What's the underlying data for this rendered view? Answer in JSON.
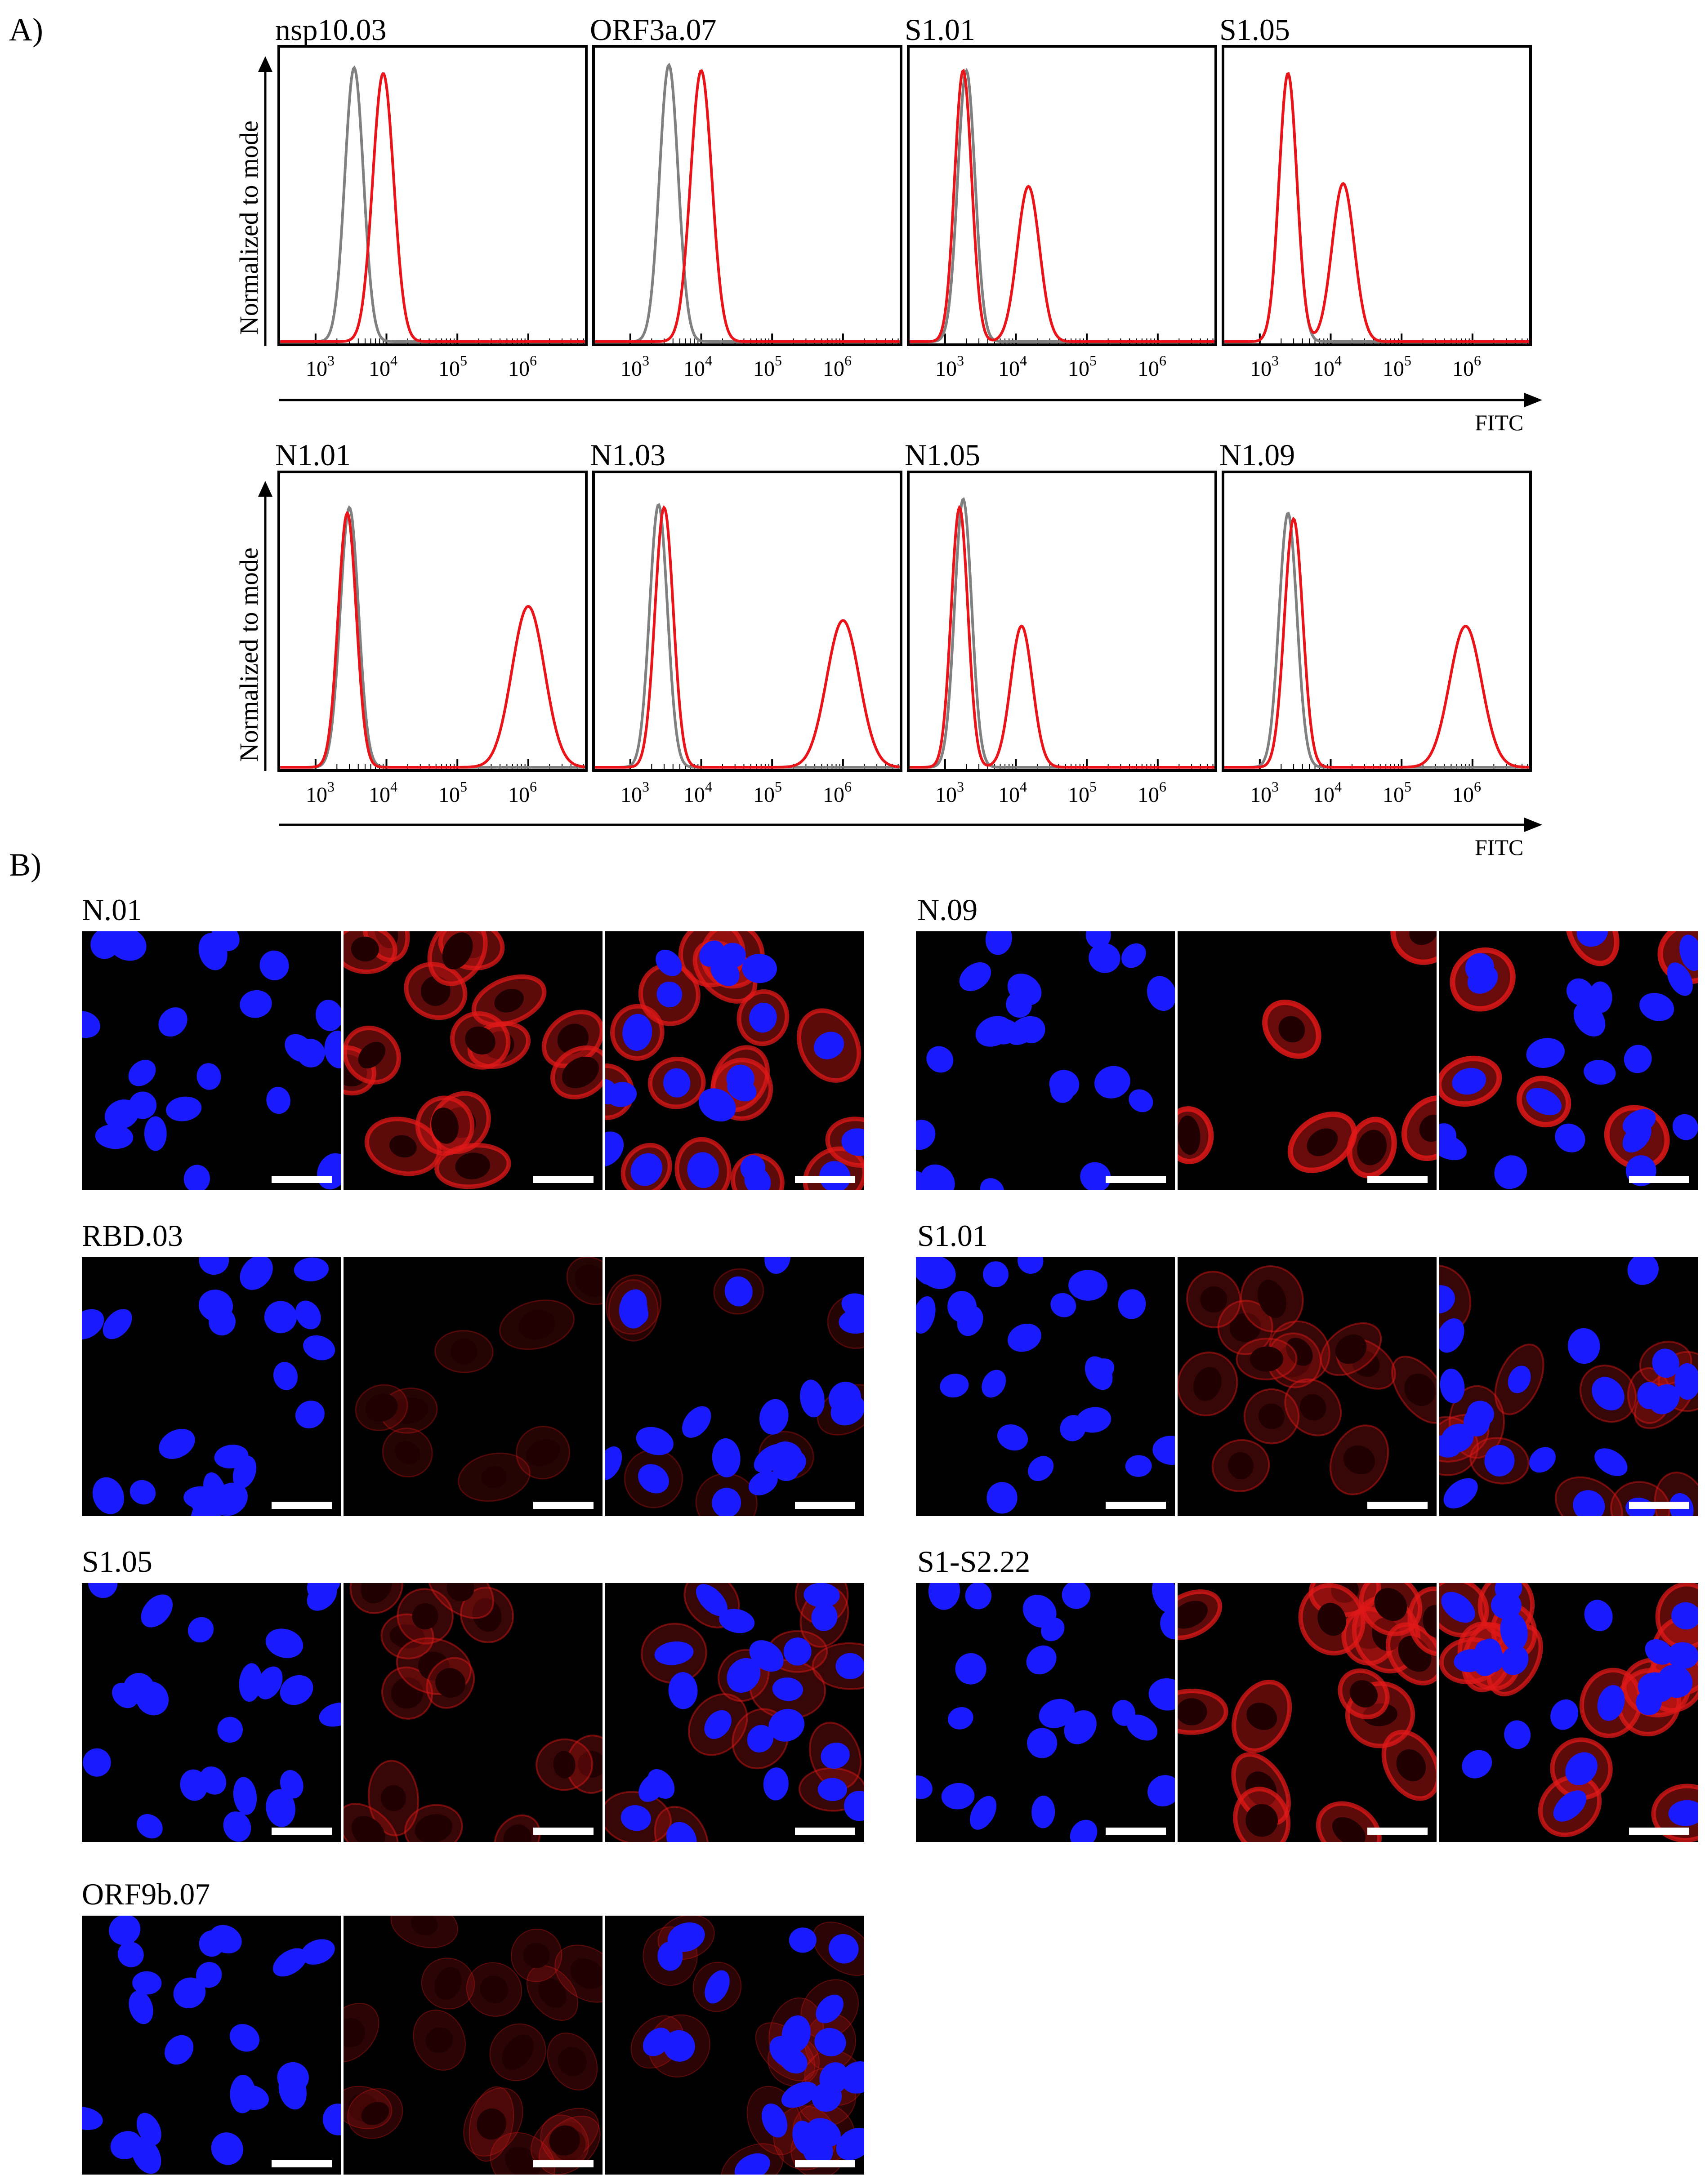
{
  "panel_a": {
    "letter": "A)",
    "y_axis_label": "Normalized to mode",
    "x_axis_label": "FITC",
    "tick_labels": [
      {
        "base": "10",
        "exp": "3"
      },
      {
        "base": "10",
        "exp": "4"
      },
      {
        "base": "10",
        "exp": "5"
      },
      {
        "base": "10",
        "exp": "6"
      }
    ],
    "rows": [
      {
        "histograms": [
          {
            "title": "nsp10.03"
          },
          {
            "title": "ORF3a.07"
          },
          {
            "title": "S1.01"
          },
          {
            "title": "S1.05"
          }
        ]
      },
      {
        "histograms": [
          {
            "title": "N1.01"
          },
          {
            "title": "N1.03"
          },
          {
            "title": "N1.05"
          },
          {
            "title": "N1.09"
          }
        ]
      }
    ],
    "colors": {
      "control": "#808080",
      "sample": "#e8141a"
    }
  },
  "panel_b": {
    "letter": "B)",
    "groups": [
      {
        "title": "N.01"
      },
      {
        "title": "N.09"
      },
      {
        "title": "RBD.03"
      },
      {
        "title": "S1.01"
      },
      {
        "title": "S1.05"
      },
      {
        "title": "S1-S2.22"
      },
      {
        "title": "ORF9b.07"
      }
    ],
    "colors": {
      "nucleus": "#1a1aff",
      "stain": "#e01818",
      "background": "#000000"
    }
  },
  "chart_data": [
    {
      "type": "line",
      "title": "nsp10.03",
      "xlabel": "FITC",
      "ylabel": "Normalized to mode",
      "x_scale": "log",
      "series": [
        {
          "name": "",
          "peaks": [
            {
              "x": 3500,
              "y": 0.97
            }
          ]
        },
        {
          "name": "",
          "peaks": [
            {
              "x": 9000,
              "y": 0.95
            }
          ]
        }
      ]
    },
    {
      "type": "line",
      "title": "ORF3a.07",
      "xlabel": "FITC",
      "ylabel": "Normalized to mode",
      "x_scale": "log",
      "series": [
        {
          "name": "",
          "peaks": [
            {
              "x": 3500,
              "y": 0.98
            }
          ]
        },
        {
          "name": "",
          "peaks": [
            {
              "x": 10000,
              "y": 0.96
            }
          ]
        }
      ]
    },
    {
      "type": "line",
      "title": "S1.01",
      "xlabel": "FITC",
      "ylabel": "Normalized to mode",
      "x_scale": "log",
      "series": [
        {
          "name": "",
          "peaks": [
            {
              "x": 2000,
              "y": 0.96
            }
          ]
        },
        {
          "name": "",
          "peaks": [
            {
              "x": 1800,
              "y": 0.96
            },
            {
              "x": 15000,
              "y": 0.55
            }
          ]
        }
      ]
    },
    {
      "type": "line",
      "title": "S1.05",
      "xlabel": "FITC",
      "ylabel": "Normalized to mode",
      "x_scale": "log",
      "series": [
        {
          "name": "",
          "peaks": [
            {
              "x": 2500,
              "y": 0.95
            }
          ]
        },
        {
          "name": "",
          "peaks": [
            {
              "x": 2500,
              "y": 0.95
            },
            {
              "x": 15000,
              "y": 0.56
            }
          ]
        }
      ]
    },
    {
      "type": "line",
      "title": "N1.01",
      "xlabel": "FITC",
      "ylabel": "Normalized to mode",
      "x_scale": "log",
      "series": [
        {
          "name": "",
          "peaks": [
            {
              "x": 3000,
              "y": 0.92
            }
          ]
        },
        {
          "name": "",
          "peaks": [
            {
              "x": 2800,
              "y": 0.9
            },
            {
              "x": 1000000,
              "y": 0.57
            }
          ]
        }
      ]
    },
    {
      "type": "line",
      "title": "N1.03",
      "xlabel": "FITC",
      "ylabel": "Normalized to mode",
      "x_scale": "log",
      "series": [
        {
          "name": "",
          "peaks": [
            {
              "x": 2500,
              "y": 0.93
            }
          ]
        },
        {
          "name": "",
          "peaks": [
            {
              "x": 3000,
              "y": 0.92
            },
            {
              "x": 1000000,
              "y": 0.52
            }
          ]
        }
      ]
    },
    {
      "type": "line",
      "title": "N1.05",
      "xlabel": "FITC",
      "ylabel": "Normalized to mode",
      "x_scale": "log",
      "series": [
        {
          "name": "",
          "peaks": [
            {
              "x": 1800,
              "y": 0.95
            }
          ]
        },
        {
          "name": "",
          "peaks": [
            {
              "x": 1600,
              "y": 0.92
            },
            {
              "x": 12000,
              "y": 0.5
            }
          ]
        }
      ]
    },
    {
      "type": "line",
      "title": "N1.09",
      "xlabel": "FITC",
      "ylabel": "Normalized to mode",
      "x_scale": "log",
      "series": [
        {
          "name": "",
          "peaks": [
            {
              "x": 2500,
              "y": 0.9
            }
          ]
        },
        {
          "name": "",
          "peaks": [
            {
              "x": 3000,
              "y": 0.88
            },
            {
              "x": 800000,
              "y": 0.5
            }
          ]
        }
      ]
    }
  ]
}
